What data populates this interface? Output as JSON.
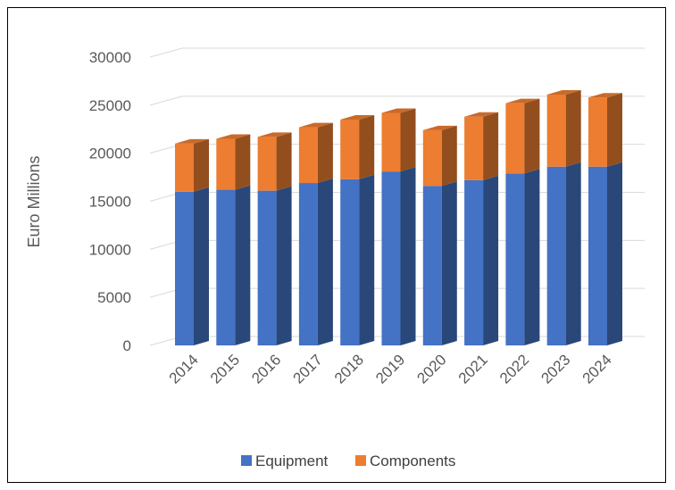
{
  "chart_data": {
    "type": "bar",
    "stacked": true,
    "style": "3d-column",
    "ylabel": "Euro Millions",
    "xlabel": "",
    "title": "",
    "ylim": [
      0,
      30000
    ],
    "yticks": [
      0,
      5000,
      10000,
      15000,
      20000,
      25000,
      30000
    ],
    "grid": true,
    "legend_position": "bottom",
    "categories": [
      "2014",
      "2015",
      "2016",
      "2017",
      "2018",
      "2019",
      "2020",
      "2021",
      "2022",
      "2023",
      "2024"
    ],
    "series": [
      {
        "name": "Equipment",
        "color": "#4472C4",
        "values": [
          16000,
          16200,
          16100,
          16900,
          17300,
          18100,
          16600,
          17200,
          17900,
          18600,
          18600
        ]
      },
      {
        "name": "Components",
        "color": "#ED7D31",
        "values": [
          5000,
          5300,
          5600,
          5800,
          6200,
          6100,
          5800,
          6600,
          7300,
          7500,
          7200
        ]
      }
    ]
  }
}
